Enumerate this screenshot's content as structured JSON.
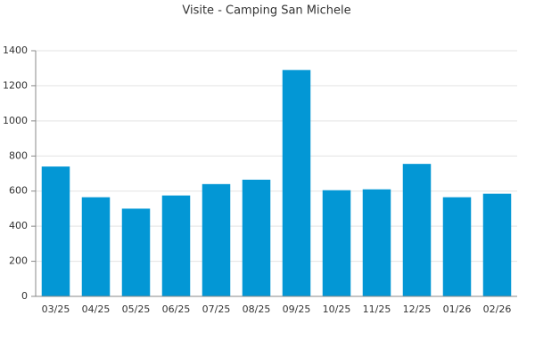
{
  "chart_data": {
    "type": "bar",
    "title": "Visite - Camping San Michele",
    "categories": [
      "03/25",
      "04/25",
      "05/25",
      "06/25",
      "07/25",
      "08/25",
      "09/25",
      "10/25",
      "11/25",
      "12/25",
      "01/26",
      "02/26"
    ],
    "values": [
      740,
      565,
      500,
      575,
      640,
      665,
      1290,
      605,
      610,
      755,
      565,
      585
    ],
    "color": "#0397d5",
    "ylim": [
      0,
      1400
    ],
    "yticks": [
      0,
      200,
      400,
      600,
      800,
      1000,
      1200,
      1400
    ],
    "grid": true
  }
}
